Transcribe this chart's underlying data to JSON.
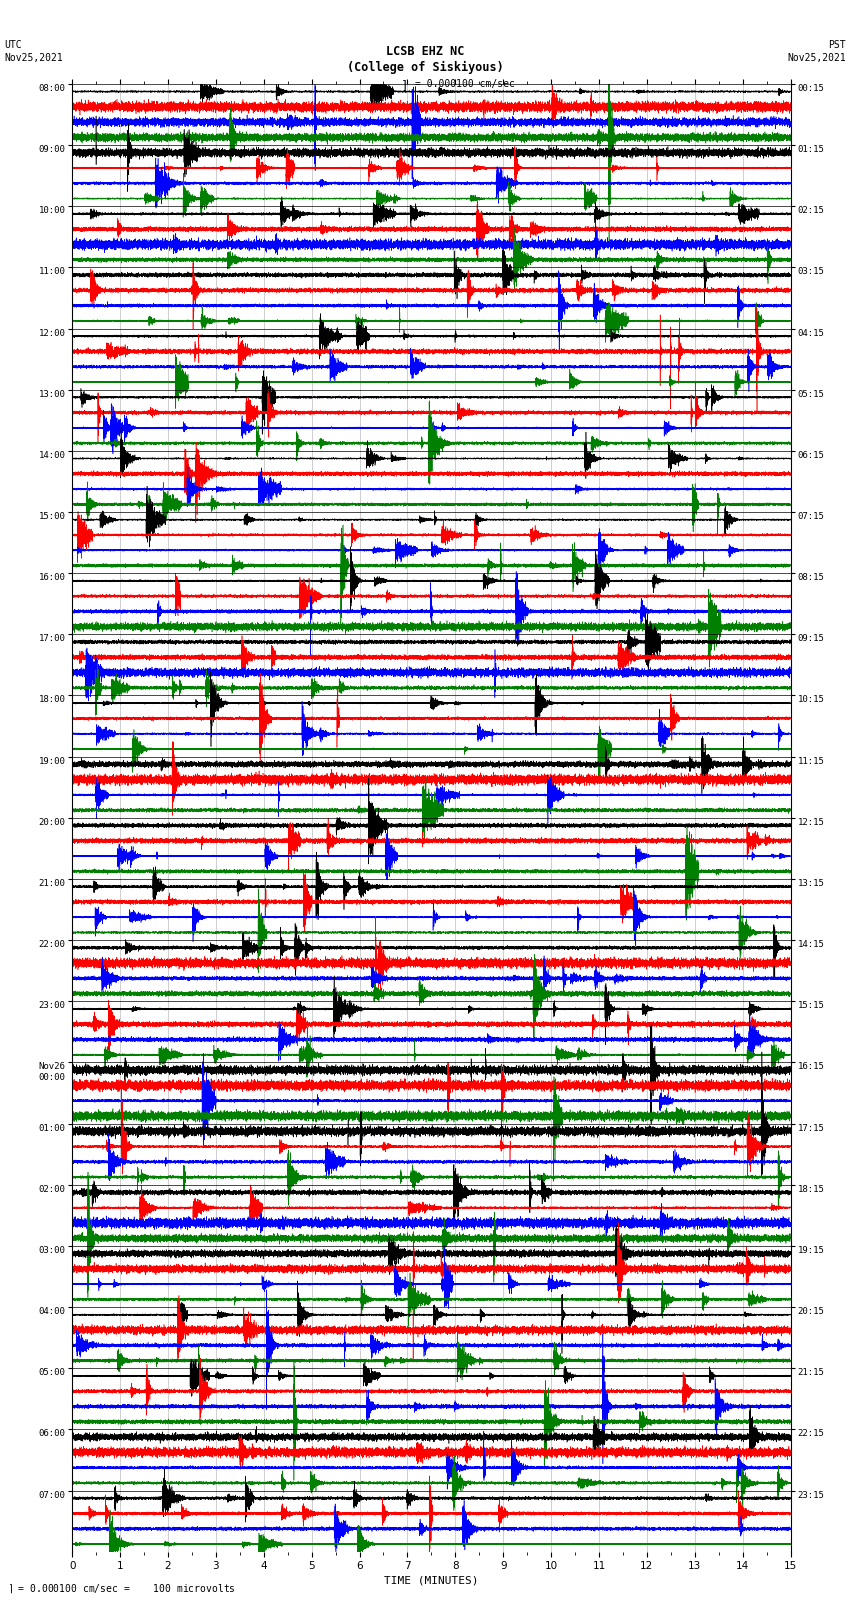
{
  "title_line1": "LCSB EHZ NC",
  "title_line2": "(College of Siskiyous)",
  "scale_text": "= 0.000100 cm/sec",
  "footer_label": "= 0.000100 cm/sec =    100 microvolts",
  "utc_label": "UTC\nNov25,2021",
  "pst_label": "PST\nNov25,2021",
  "xlabel": "TIME (MINUTES)",
  "left_times": [
    "08:00",
    "09:00",
    "10:00",
    "11:00",
    "12:00",
    "13:00",
    "14:00",
    "15:00",
    "16:00",
    "17:00",
    "18:00",
    "19:00",
    "20:00",
    "21:00",
    "22:00",
    "23:00",
    "Nov26\n00:00",
    "01:00",
    "02:00",
    "03:00",
    "04:00",
    "05:00",
    "06:00",
    "07:00"
  ],
  "right_times": [
    "00:15",
    "01:15",
    "02:15",
    "03:15",
    "04:15",
    "05:15",
    "06:15",
    "07:15",
    "08:15",
    "09:15",
    "10:15",
    "11:15",
    "12:15",
    "13:15",
    "14:15",
    "15:15",
    "16:15",
    "17:15",
    "18:15",
    "19:15",
    "20:15",
    "21:15",
    "22:15",
    "23:15"
  ],
  "n_rows": 24,
  "traces_per_row": 4,
  "colors": [
    "black",
    "red",
    "blue",
    "green"
  ],
  "minutes": 15,
  "bg_color": "#ffffff",
  "separator_color": "black",
  "vgrid_color": "#888888"
}
